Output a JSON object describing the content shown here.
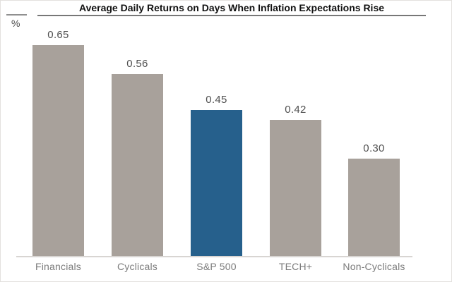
{
  "window": {
    "background": "#ffffff",
    "border_color": "#e3e1de"
  },
  "chart_data": {
    "type": "bar",
    "title": "Average Daily Returns on Days When Inflation Expectations Rise",
    "ylabel": "%",
    "xlabel": "",
    "categories": [
      "Financials",
      "Cyclicals",
      "S&P 500",
      "TECH+",
      "Non-Cyclicals"
    ],
    "values": [
      0.65,
      0.56,
      0.45,
      0.42,
      0.3
    ],
    "data_labels": [
      "0.65",
      "0.56",
      "0.45",
      "0.42",
      "0.30"
    ],
    "data_labels_position": "above",
    "highlighted_category": "S&P 500",
    "ylim": [
      0,
      0.7
    ],
    "grid": false,
    "legend": false,
    "y_axis_ticks_visible": false,
    "colors": {
      "bar": "#a8a19b",
      "highlight": "#26608c",
      "axis_line": "#d8d5d2",
      "title_rule": "#777777",
      "left_rule": "#909090",
      "value_label_text": "#4f4f4f",
      "category_text": "#7b7b7b",
      "title_text": "#111111"
    }
  }
}
